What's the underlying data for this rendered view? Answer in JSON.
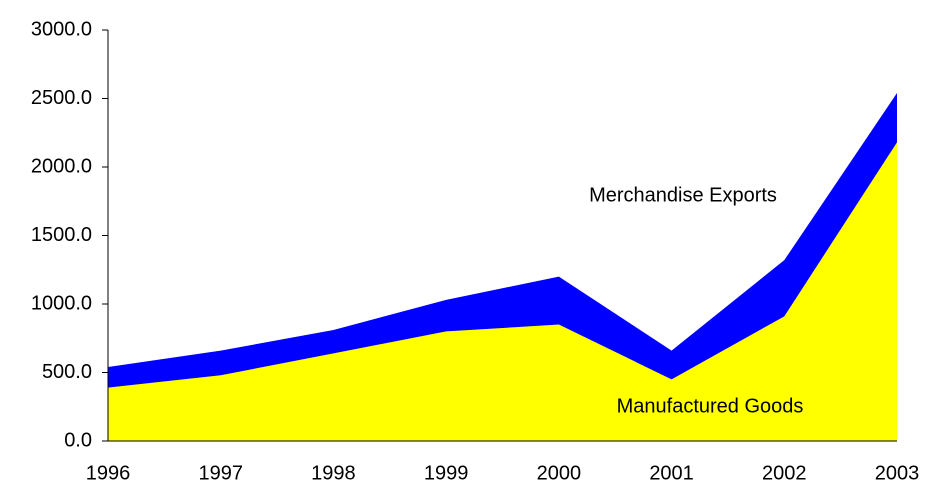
{
  "chart_data": {
    "type": "area",
    "categories": [
      "1996",
      "1997",
      "1998",
      "1999",
      "2000",
      "2001",
      "2002",
      "2003"
    ],
    "series": [
      {
        "name": "Merchandise Exports",
        "color": "#0000ff",
        "values": [
          540,
          660,
          810,
          1030,
          1200,
          660,
          1320,
          2540
        ]
      },
      {
        "name": "Manufactured Goods",
        "color": "#ffff00",
        "values": [
          390,
          480,
          640,
          800,
          850,
          450,
          910,
          2180
        ]
      }
    ],
    "ylim": [
      0,
      3000
    ],
    "yticks": [
      {
        "value": 0,
        "label": "0.0"
      },
      {
        "value": 500,
        "label": "500.0"
      },
      {
        "value": 1000,
        "label": "1000.0"
      },
      {
        "value": 1500,
        "label": "1500.0"
      },
      {
        "value": 2000,
        "label": "2000.0"
      },
      {
        "value": 2500,
        "label": "2500.0"
      },
      {
        "value": 3000,
        "label": "3000.0"
      }
    ],
    "grid": false
  }
}
